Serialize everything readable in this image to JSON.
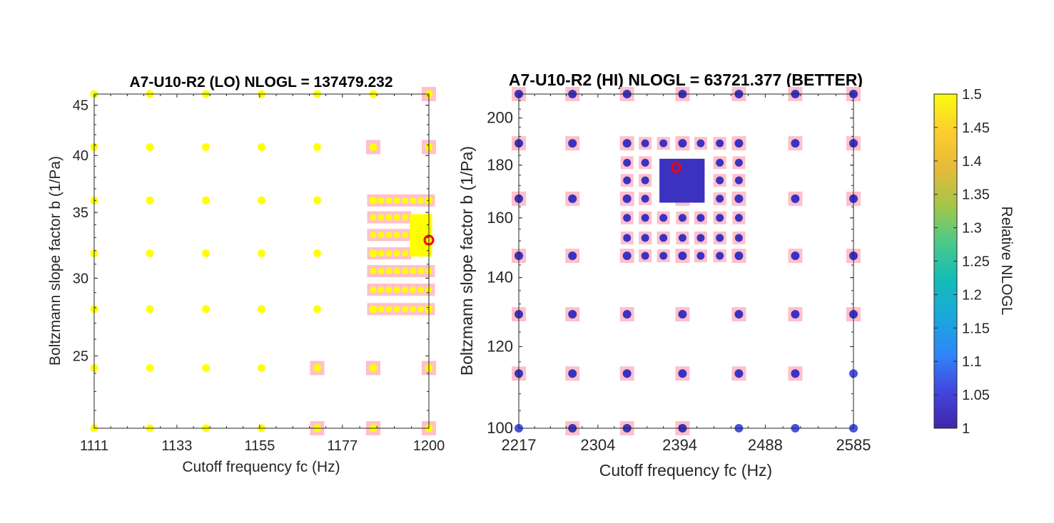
{
  "chart_data": [
    {
      "type": "scatter",
      "title": "A7-U10-R2 (LO) NLOGL = 137479.232",
      "xlabel": "Cutoff frequency fc (Hz)",
      "ylabel": "Boltzmann slope factor b (1/Pa)",
      "xlim": [
        1111,
        1200
      ],
      "ylim": [
        21.1,
        46.2
      ],
      "yscale": "log",
      "xticks": [
        1111,
        1133,
        1155,
        1177,
        1200
      ],
      "xtick_labels": [
        "1111",
        "1133",
        "1155",
        "1177",
        "1200"
      ],
      "yticks": [
        25,
        30,
        35,
        40,
        45
      ],
      "ytick_labels": [
        "25",
        "30",
        "35",
        "40",
        "45"
      ],
      "grid": false,
      "marker_color": "#FFFF00",
      "highlight_color": "#FFC0CB",
      "best_marker_color": "#FF0000",
      "coarse_x": [
        1111,
        1125.8,
        1140.7,
        1155.5,
        1170.3,
        1185.2,
        1200
      ],
      "coarse_y": [
        21.1,
        24.3,
        27.9,
        31.8,
        36.0,
        40.8,
        46.2
      ],
      "highlighted_points": [
        [
          1200,
          46.2
        ],
        [
          1185.2,
          40.8
        ],
        [
          1200,
          40.8
        ],
        [
          1170.3,
          24.3
        ],
        [
          1185.2,
          24.3
        ],
        [
          1200,
          24.3
        ],
        [
          1170.3,
          21.1
        ],
        [
          1185.2,
          21.1
        ],
        [
          1200,
          21.1
        ]
      ],
      "fine_x": [
        1185.2,
        1187.3,
        1189.4,
        1191.5,
        1193.7,
        1195.8,
        1197.9,
        1200
      ],
      "fine_y": [
        27.9,
        29.2,
        30.5,
        31.8,
        33.2,
        34.6,
        36.0
      ],
      "dense_region": {
        "x": [
          1195.8,
          1200
        ],
        "y": [
          31.8,
          34.6
        ]
      },
      "best_fit": {
        "x": 1200,
        "y": 32.8
      }
    },
    {
      "type": "scatter",
      "title": "A7-U10-R2 (HI) NLOGL = 63721.377 (BETTER)",
      "xlabel": "Cutoff frequency fc (Hz)",
      "ylabel": "Boltzmann slope factor b (1/Pa)",
      "xlim": [
        2217,
        2585
      ],
      "ylim": [
        100,
        211
      ],
      "yscale": "log",
      "xticks": [
        2217,
        2304,
        2394,
        2488,
        2585
      ],
      "xtick_labels": [
        "2217",
        "2304",
        "2394",
        "2488",
        "2585"
      ],
      "yticks": [
        100,
        120,
        140,
        160,
        180,
        200
      ],
      "ytick_labels": [
        "100",
        "120",
        "140",
        "160",
        "180",
        "200"
      ],
      "grid": false,
      "marker_color": "#3B32C0",
      "edge_marker_color": "#4752E0",
      "highlight_color": "#FFC0CB",
      "best_marker_color": "#FF0000",
      "coarse_x": [
        2217,
        2276,
        2336,
        2397,
        2459,
        2521,
        2585
      ],
      "coarse_y": [
        100,
        113,
        129,
        147,
        167,
        189,
        211
      ],
      "edge_points_not_highlighted": [
        [
          2217,
          100
        ],
        [
          2459,
          100
        ],
        [
          2521,
          100
        ],
        [
          2585,
          100
        ],
        [
          2585,
          113
        ]
      ],
      "fine_x": [
        2336,
        2356,
        2376,
        2397,
        2417,
        2438,
        2459
      ],
      "fine_y": [
        147,
        153,
        160,
        167,
        174,
        181,
        189
      ],
      "dense_region": {
        "x": [
          2376,
          2417
        ],
        "y": [
          167,
          181
        ]
      },
      "best_fit": {
        "x": 2390,
        "y": 179
      }
    }
  ],
  "colorbar": {
    "label": "Relative NLOGL",
    "range": [
      1,
      1.5
    ],
    "ticks": [
      "1",
      "1.05",
      "1.1",
      "1.15",
      "1.2",
      "1.25",
      "1.3",
      "1.35",
      "1.4",
      "1.45",
      "1.5"
    ],
    "colormap": "parula",
    "stops": [
      "#3E26A8",
      "#4246E0",
      "#2E87F7",
      "#1AA8DB",
      "#13BCB7",
      "#4BC98A",
      "#A5C64A",
      "#E7BA3A",
      "#FCCE2E",
      "#F9FB0E"
    ]
  }
}
